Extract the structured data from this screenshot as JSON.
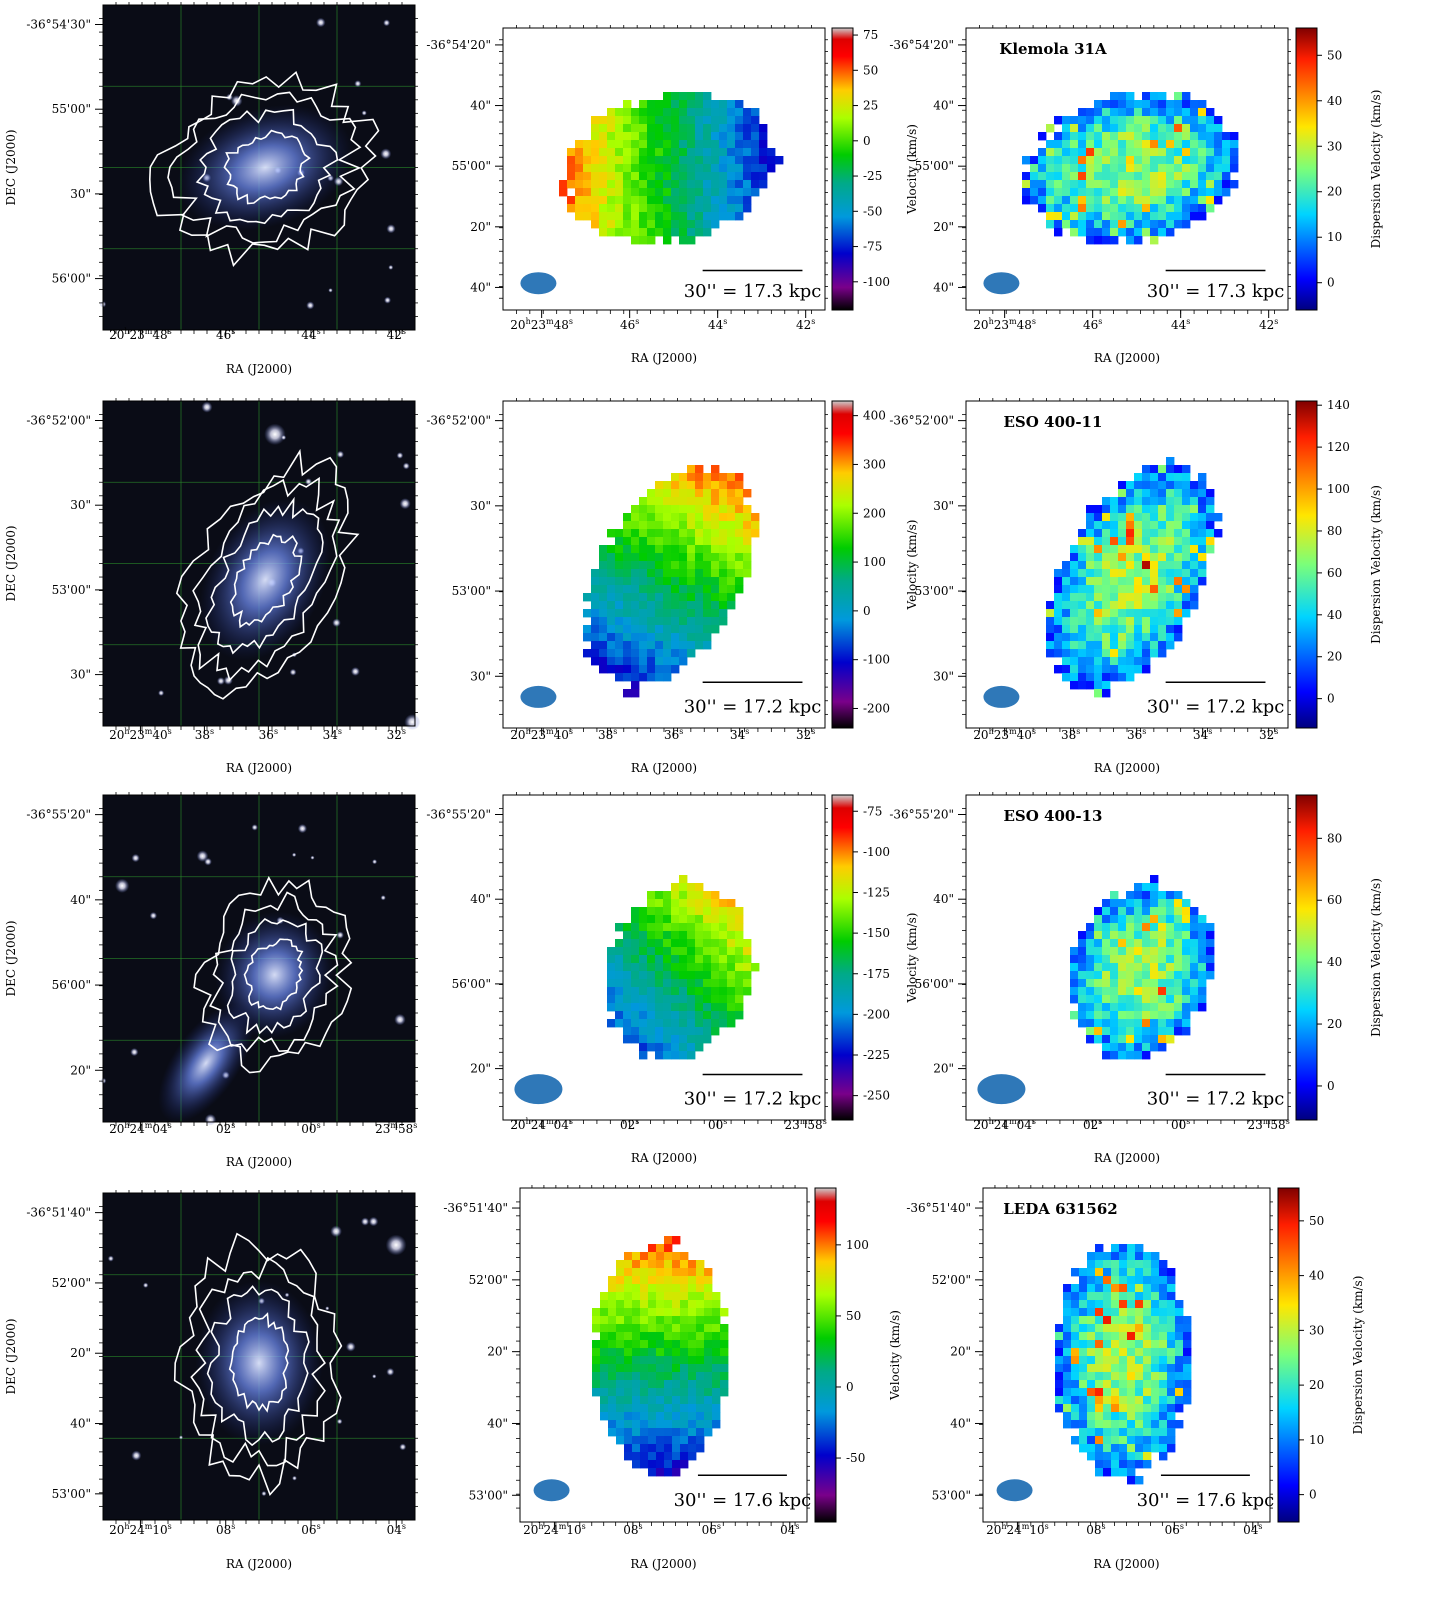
{
  "colors": {
    "sky": "#0a0c16",
    "grid": "#2a8a2a",
    "contour": "#ffffff",
    "beam": "#2f78b8"
  },
  "rows": [
    {
      "title": "Klemola 31A",
      "image": {
        "dec_ticks": [
          "-36°54'30\"",
          "55'00\"",
          "30\"",
          "56'00\""
        ],
        "ra_ticks": [
          "20h23m48s",
          "46s",
          "44s",
          "42s"
        ]
      },
      "velocity": {
        "dec_ticks": [
          "-36°54'20\"",
          "40\"",
          "55'00\"",
          "20\"",
          "40\""
        ],
        "ra_ticks": [
          "20h23m48s",
          "46s",
          "44s",
          "42s"
        ],
        "cbar_ticks": [
          "75",
          "50",
          "25",
          "0",
          "-25",
          "-50",
          "-75",
          "-100"
        ],
        "cbar_range": [
          -120,
          80
        ],
        "scale_bar": "30'' = 17.3 kpc"
      },
      "dispersion": {
        "dec_ticks": [
          "-36°54'20\"",
          "40\"",
          "55'00\"",
          "20\"",
          "40\""
        ],
        "ra_ticks": [
          "20h23m48s",
          "46s",
          "44s",
          "42s"
        ],
        "cbar_ticks": [
          "50",
          "40",
          "30",
          "20",
          "10",
          "0"
        ],
        "cbar_range": [
          -6,
          56
        ],
        "scale_bar": "30'' = 17.3 kpc"
      }
    },
    {
      "title": "ESO 400-11",
      "image": {
        "dec_ticks": [
          "-36°52'00\"",
          "30\"",
          "53'00\"",
          "30\""
        ],
        "ra_ticks": [
          "20h23m40s",
          "38s",
          "36s",
          "34s",
          "32s"
        ]
      },
      "velocity": {
        "dec_ticks": [
          "-36°52'00\"",
          "30\"",
          "53'00\"",
          "30\""
        ],
        "ra_ticks": [
          "20h23m40s",
          "38s",
          "36s",
          "34s",
          "32s"
        ],
        "cbar_ticks": [
          "400",
          "300",
          "200",
          "100",
          "0",
          "-100",
          "-200"
        ],
        "cbar_range": [
          -240,
          430
        ],
        "scale_bar": "30'' = 17.2 kpc"
      },
      "dispersion": {
        "dec_ticks": [
          "-36°52'00\"",
          "30\"",
          "53'00\"",
          "30\""
        ],
        "ra_ticks": [
          "20h23m40s",
          "38s",
          "36s",
          "34s",
          "32s"
        ],
        "cbar_ticks": [
          "140",
          "120",
          "100",
          "80",
          "60",
          "40",
          "20",
          "0"
        ],
        "cbar_range": [
          -14,
          142
        ],
        "scale_bar": "30'' = 17.2 kpc"
      }
    },
    {
      "title": "ESO 400-13",
      "image": {
        "dec_ticks": [
          "-36°55'20\"",
          "40\"",
          "56'00\"",
          "20\""
        ],
        "ra_ticks": [
          "20h24m04s",
          "02s",
          "00s",
          "23m58s"
        ]
      },
      "velocity": {
        "dec_ticks": [
          "-36°55'20\"",
          "40\"",
          "56'00\"",
          "20\""
        ],
        "ra_ticks": [
          "20h24m04s",
          "02s",
          "00s",
          "23m58s"
        ],
        "cbar_ticks": [
          "-75",
          "-100",
          "-125",
          "-150",
          "-175",
          "-200",
          "-225",
          "-250"
        ],
        "cbar_range": [
          -265,
          -65
        ],
        "scale_bar": "30'' = 17.2 kpc"
      },
      "dispersion": {
        "dec_ticks": [
          "-36°55'20\"",
          "40\"",
          "56'00\"",
          "20\""
        ],
        "ra_ticks": [
          "20h24m04s",
          "02s",
          "00s",
          "23m58s"
        ],
        "cbar_ticks": [
          "80",
          "60",
          "40",
          "20",
          "0"
        ],
        "cbar_range": [
          -11,
          94
        ],
        "scale_bar": "30'' = 17.2 kpc"
      }
    },
    {
      "title": "LEDA 631562",
      "image": {
        "dec_ticks": [
          "-36°51'40\"",
          "52'00\"",
          "20\"",
          "40\"",
          "53'00\""
        ],
        "ra_ticks": [
          "20h24m10s",
          "08s",
          "06s",
          "04s"
        ]
      },
      "velocity": {
        "dec_ticks": [
          "-36°51'40\"",
          "52'00\"",
          "20\"",
          "40\"",
          "53'00\""
        ],
        "ra_ticks": [
          "20h24m10s",
          "08s",
          "06s",
          "04s"
        ],
        "cbar_ticks": [
          "100",
          "50",
          "0",
          "-50"
        ],
        "cbar_range": [
          -95,
          140
        ],
        "scale_bar": "30'' = 17.6 kpc"
      },
      "dispersion": {
        "dec_ticks": [
          "-36°51'40\"",
          "52'00\"",
          "20\"",
          "40\"",
          "53'00\""
        ],
        "ra_ticks": [
          "20h24m10s",
          "08s",
          "06s",
          "04s"
        ],
        "cbar_ticks": [
          "50",
          "40",
          "30",
          "20",
          "10",
          "0"
        ],
        "cbar_range": [
          -5,
          56
        ],
        "scale_bar": "30'' = 17.6 kpc"
      }
    }
  ],
  "labels": {
    "ra": "RA (J2000)",
    "dec": "DEC (J2000)",
    "velocity": "Velocity (km/s)",
    "dispersion": "Dispersion Velocity (km/s)"
  }
}
